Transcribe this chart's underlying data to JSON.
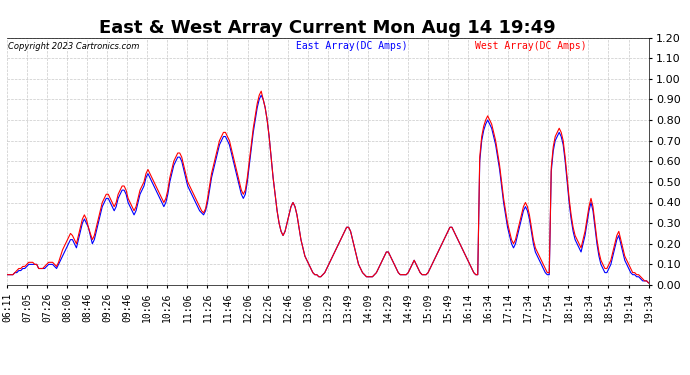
{
  "title": "East & West Array Current Mon Aug 14 19:49",
  "copyright": "Copyright 2023 Cartronics.com",
  "legend_east": "East Array(DC Amps)",
  "legend_west": "West Array(DC Amps)",
  "east_color": "#0000ff",
  "west_color": "#ff0000",
  "background_color": "#ffffff",
  "grid_color": "#bbbbbb",
  "ylim": [
    0.0,
    1.2
  ],
  "yticks": [
    0.0,
    0.1,
    0.2,
    0.3,
    0.4,
    0.5,
    0.6,
    0.7,
    0.8,
    0.9,
    1.0,
    1.1,
    1.2
  ],
  "x_labels": [
    "06:11",
    "07:05",
    "07:26",
    "08:06",
    "08:46",
    "09:26",
    "09:46",
    "10:06",
    "10:26",
    "11:06",
    "11:26",
    "11:46",
    "12:06",
    "12:26",
    "12:46",
    "13:06",
    "13:29",
    "13:49",
    "14:09",
    "14:29",
    "14:49",
    "15:09",
    "15:49",
    "16:14",
    "16:34",
    "17:14",
    "17:34",
    "17:54",
    "18:14",
    "18:34",
    "18:54",
    "19:14",
    "19:34"
  ],
  "title_fontsize": 13,
  "label_fontsize": 7,
  "tick_fontsize": 8,
  "line_width": 0.8,
  "east_data": [
    0.05,
    0.05,
    0.05,
    0.05,
    0.06,
    0.06,
    0.07,
    0.07,
    0.08,
    0.08,
    0.09,
    0.1,
    0.1,
    0.1,
    0.1,
    0.1,
    0.08,
    0.08,
    0.08,
    0.08,
    0.09,
    0.1,
    0.1,
    0.1,
    0.09,
    0.08,
    0.1,
    0.12,
    0.14,
    0.16,
    0.18,
    0.2,
    0.22,
    0.22,
    0.2,
    0.18,
    0.22,
    0.26,
    0.3,
    0.32,
    0.3,
    0.28,
    0.24,
    0.2,
    0.22,
    0.26,
    0.3,
    0.34,
    0.38,
    0.4,
    0.42,
    0.42,
    0.4,
    0.38,
    0.36,
    0.38,
    0.42,
    0.44,
    0.46,
    0.46,
    0.44,
    0.4,
    0.38,
    0.36,
    0.34,
    0.36,
    0.4,
    0.44,
    0.46,
    0.48,
    0.52,
    0.54,
    0.52,
    0.5,
    0.48,
    0.46,
    0.44,
    0.42,
    0.4,
    0.38,
    0.4,
    0.44,
    0.5,
    0.54,
    0.58,
    0.6,
    0.62,
    0.62,
    0.6,
    0.56,
    0.52,
    0.48,
    0.46,
    0.44,
    0.42,
    0.4,
    0.38,
    0.36,
    0.35,
    0.34,
    0.36,
    0.4,
    0.46,
    0.52,
    0.56,
    0.6,
    0.64,
    0.68,
    0.7,
    0.72,
    0.72,
    0.7,
    0.68,
    0.64,
    0.6,
    0.56,
    0.52,
    0.48,
    0.44,
    0.42,
    0.44,
    0.5,
    0.58,
    0.66,
    0.74,
    0.8,
    0.86,
    0.9,
    0.92,
    0.9,
    0.86,
    0.8,
    0.72,
    0.62,
    0.52,
    0.44,
    0.36,
    0.3,
    0.26,
    0.24,
    0.26,
    0.3,
    0.34,
    0.38,
    0.4,
    0.38,
    0.34,
    0.28,
    0.22,
    0.18,
    0.14,
    0.12,
    0.1,
    0.08,
    0.06,
    0.05,
    0.05,
    0.04,
    0.04,
    0.05,
    0.06,
    0.08,
    0.1,
    0.12,
    0.14,
    0.16,
    0.18,
    0.2,
    0.22,
    0.24,
    0.26,
    0.28,
    0.28,
    0.26,
    0.22,
    0.18,
    0.14,
    0.1,
    0.08,
    0.06,
    0.05,
    0.04,
    0.04,
    0.04,
    0.04,
    0.05,
    0.06,
    0.08,
    0.1,
    0.12,
    0.14,
    0.16,
    0.16,
    0.14,
    0.12,
    0.1,
    0.08,
    0.06,
    0.05,
    0.05,
    0.05,
    0.05,
    0.06,
    0.08,
    0.1,
    0.12,
    0.1,
    0.08,
    0.06,
    0.05,
    0.05,
    0.05,
    0.06,
    0.08,
    0.1,
    0.12,
    0.14,
    0.16,
    0.18,
    0.2,
    0.22,
    0.24,
    0.26,
    0.28,
    0.28,
    0.26,
    0.24,
    0.22,
    0.2,
    0.18,
    0.16,
    0.14,
    0.12,
    0.1,
    0.08,
    0.06,
    0.05,
    0.05,
    0.6,
    0.7,
    0.75,
    0.78,
    0.8,
    0.78,
    0.76,
    0.72,
    0.68,
    0.62,
    0.56,
    0.48,
    0.4,
    0.34,
    0.28,
    0.24,
    0.2,
    0.18,
    0.2,
    0.24,
    0.28,
    0.32,
    0.36,
    0.38,
    0.36,
    0.32,
    0.26,
    0.2,
    0.16,
    0.14,
    0.12,
    0.1,
    0.08,
    0.06,
    0.05,
    0.05,
    0.55,
    0.65,
    0.7,
    0.72,
    0.74,
    0.72,
    0.68,
    0.6,
    0.5,
    0.4,
    0.32,
    0.26,
    0.22,
    0.2,
    0.18,
    0.16,
    0.2,
    0.24,
    0.3,
    0.36,
    0.4,
    0.36,
    0.28,
    0.2,
    0.14,
    0.1,
    0.08,
    0.06,
    0.06,
    0.08,
    0.1,
    0.14,
    0.18,
    0.22,
    0.24,
    0.2,
    0.16,
    0.12,
    0.1,
    0.08,
    0.06,
    0.05,
    0.05,
    0.04,
    0.04,
    0.03,
    0.02,
    0.02,
    0.02,
    0.01
  ],
  "west_data": [
    0.05,
    0.05,
    0.05,
    0.05,
    0.06,
    0.07,
    0.08,
    0.08,
    0.09,
    0.09,
    0.1,
    0.11,
    0.11,
    0.11,
    0.1,
    0.1,
    0.08,
    0.08,
    0.08,
    0.09,
    0.1,
    0.11,
    0.11,
    0.11,
    0.1,
    0.09,
    0.11,
    0.14,
    0.17,
    0.19,
    0.21,
    0.23,
    0.25,
    0.24,
    0.22,
    0.2,
    0.24,
    0.28,
    0.32,
    0.34,
    0.32,
    0.28,
    0.25,
    0.22,
    0.24,
    0.28,
    0.32,
    0.36,
    0.4,
    0.42,
    0.44,
    0.44,
    0.42,
    0.4,
    0.38,
    0.4,
    0.44,
    0.46,
    0.48,
    0.48,
    0.46,
    0.42,
    0.4,
    0.38,
    0.36,
    0.38,
    0.42,
    0.46,
    0.48,
    0.5,
    0.54,
    0.56,
    0.54,
    0.52,
    0.5,
    0.48,
    0.46,
    0.44,
    0.42,
    0.4,
    0.42,
    0.46,
    0.52,
    0.56,
    0.6,
    0.62,
    0.64,
    0.64,
    0.62,
    0.58,
    0.54,
    0.5,
    0.48,
    0.46,
    0.44,
    0.42,
    0.4,
    0.38,
    0.36,
    0.35,
    0.37,
    0.42,
    0.48,
    0.54,
    0.58,
    0.62,
    0.66,
    0.7,
    0.72,
    0.74,
    0.74,
    0.72,
    0.7,
    0.66,
    0.62,
    0.58,
    0.54,
    0.5,
    0.46,
    0.44,
    0.46,
    0.52,
    0.6,
    0.68,
    0.76,
    0.82,
    0.88,
    0.92,
    0.94,
    0.9,
    0.86,
    0.8,
    0.72,
    0.62,
    0.52,
    0.44,
    0.36,
    0.3,
    0.26,
    0.24,
    0.26,
    0.3,
    0.34,
    0.38,
    0.4,
    0.38,
    0.34,
    0.28,
    0.22,
    0.18,
    0.14,
    0.12,
    0.1,
    0.08,
    0.06,
    0.05,
    0.05,
    0.04,
    0.04,
    0.05,
    0.06,
    0.08,
    0.1,
    0.12,
    0.14,
    0.16,
    0.18,
    0.2,
    0.22,
    0.24,
    0.26,
    0.28,
    0.28,
    0.26,
    0.22,
    0.18,
    0.14,
    0.1,
    0.08,
    0.06,
    0.05,
    0.04,
    0.04,
    0.04,
    0.04,
    0.05,
    0.06,
    0.08,
    0.1,
    0.12,
    0.14,
    0.16,
    0.16,
    0.14,
    0.12,
    0.1,
    0.08,
    0.06,
    0.05,
    0.05,
    0.05,
    0.05,
    0.06,
    0.08,
    0.1,
    0.12,
    0.1,
    0.08,
    0.06,
    0.05,
    0.05,
    0.05,
    0.06,
    0.08,
    0.1,
    0.12,
    0.14,
    0.16,
    0.18,
    0.2,
    0.22,
    0.24,
    0.26,
    0.28,
    0.28,
    0.26,
    0.24,
    0.22,
    0.2,
    0.18,
    0.16,
    0.14,
    0.12,
    0.1,
    0.08,
    0.06,
    0.05,
    0.05,
    0.62,
    0.72,
    0.77,
    0.8,
    0.82,
    0.8,
    0.78,
    0.74,
    0.7,
    0.64,
    0.58,
    0.5,
    0.42,
    0.36,
    0.3,
    0.26,
    0.22,
    0.2,
    0.22,
    0.26,
    0.3,
    0.34,
    0.38,
    0.4,
    0.38,
    0.34,
    0.28,
    0.22,
    0.18,
    0.16,
    0.14,
    0.12,
    0.1,
    0.08,
    0.06,
    0.06,
    0.57,
    0.67,
    0.72,
    0.74,
    0.76,
    0.74,
    0.7,
    0.62,
    0.52,
    0.42,
    0.34,
    0.28,
    0.24,
    0.22,
    0.2,
    0.18,
    0.22,
    0.26,
    0.32,
    0.38,
    0.42,
    0.38,
    0.3,
    0.22,
    0.16,
    0.12,
    0.1,
    0.08,
    0.08,
    0.1,
    0.12,
    0.16,
    0.2,
    0.24,
    0.26,
    0.22,
    0.18,
    0.14,
    0.12,
    0.1,
    0.08,
    0.06,
    0.06,
    0.05,
    0.05,
    0.04,
    0.03,
    0.02,
    0.02,
    0.01
  ]
}
